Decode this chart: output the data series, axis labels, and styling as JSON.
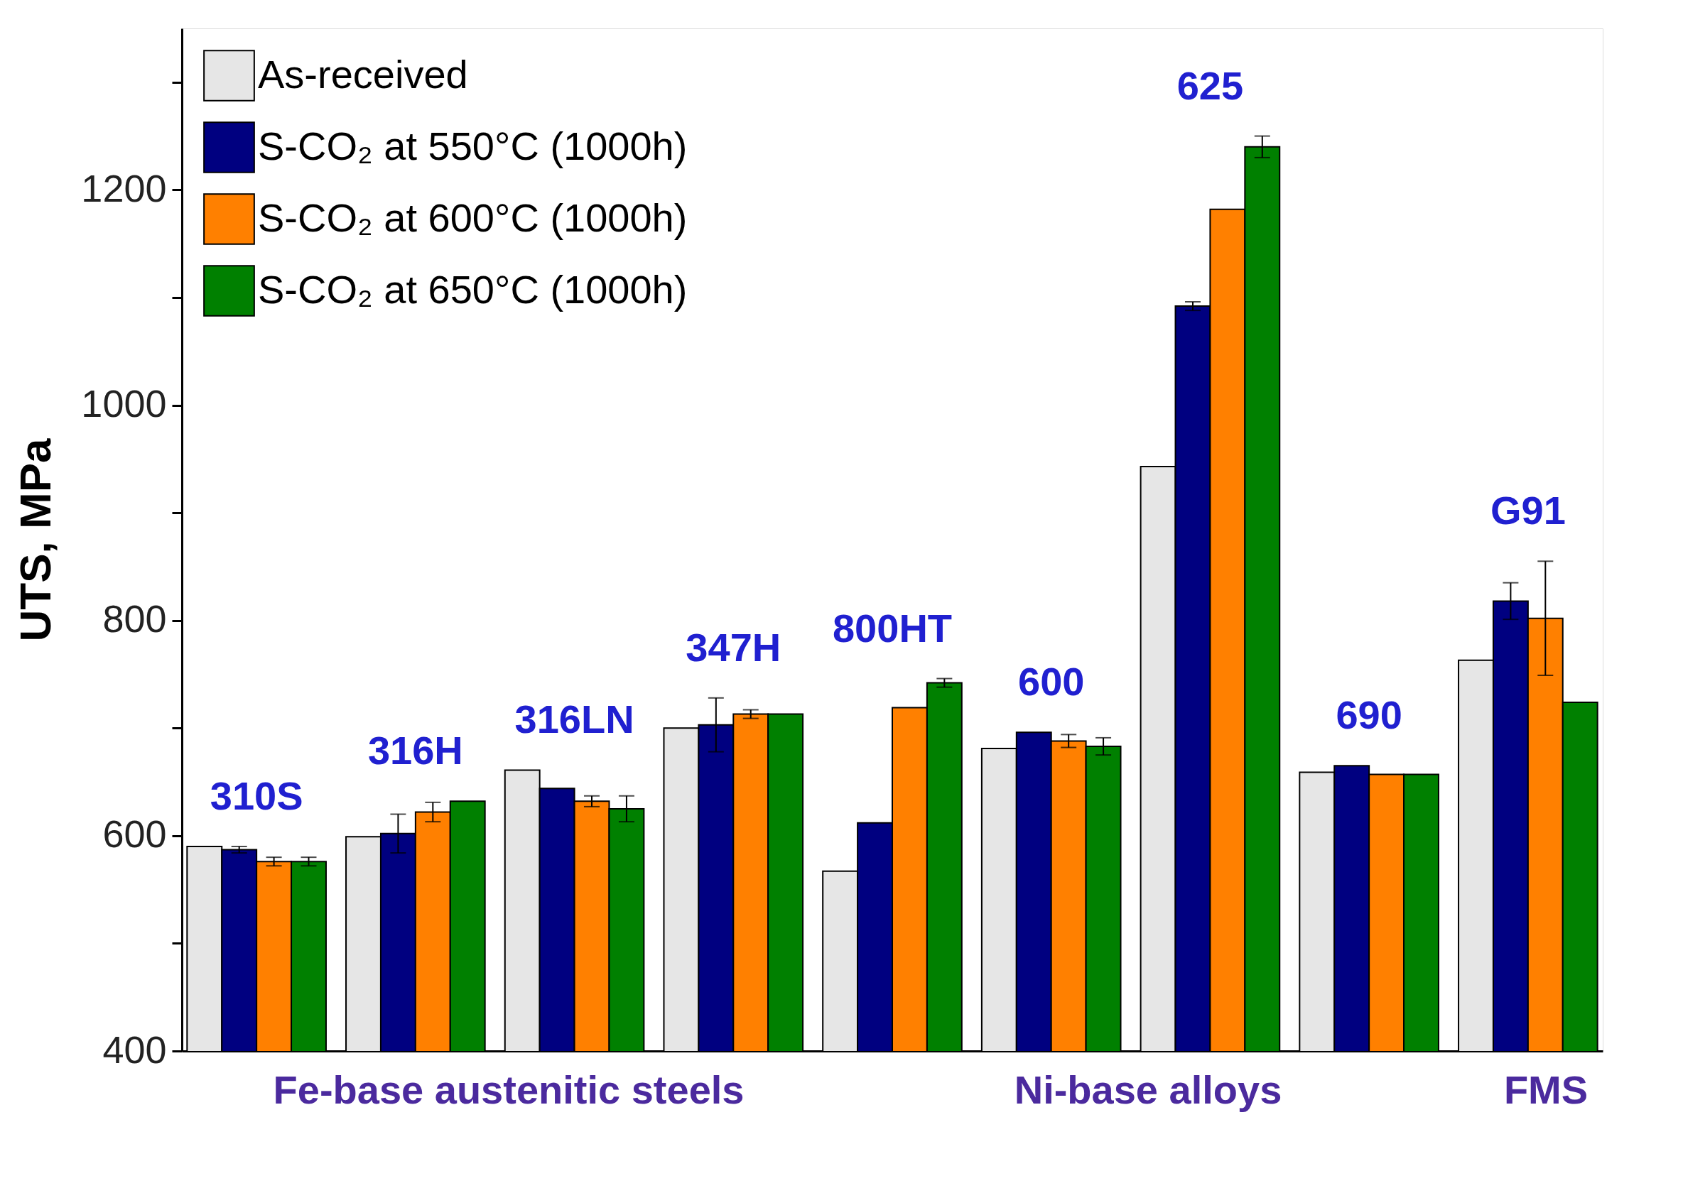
{
  "chart_data": {
    "type": "bar",
    "ylabel": "UTS, MPa",
    "categories": [
      "310S",
      "316H",
      "316LN",
      "347H",
      "800HT",
      "600",
      "625",
      "690",
      "G91"
    ],
    "series": [
      {
        "name": "As-received",
        "color": "#e6e6e6",
        "values": [
          590,
          599,
          661,
          700,
          567,
          681,
          943,
          659,
          763
        ]
      },
      {
        "name": "S-CO₂ at 550°C (1000h)",
        "color": "#000080",
        "values": [
          587,
          602,
          644,
          703,
          612,
          696,
          1092,
          665,
          818
        ],
        "errors": [
          3,
          18,
          null,
          25,
          null,
          null,
          4,
          null,
          17
        ]
      },
      {
        "name": "S-CO₂ at 600°C (1000h)",
        "color": "#ff8000",
        "values": [
          576,
          622,
          632,
          713,
          719,
          688,
          1182,
          657,
          802
        ],
        "errors": [
          4,
          9,
          5,
          4,
          null,
          6,
          null,
          null,
          53
        ]
      },
      {
        "name": "S-CO₂ at 650°C (1000h)",
        "color": "#008000",
        "values": [
          576,
          632,
          625,
          713,
          742,
          683,
          1240,
          657,
          724
        ],
        "errors": [
          4,
          null,
          12,
          null,
          4,
          8,
          10,
          null,
          null
        ]
      }
    ],
    "ylim": [
      400,
      1350
    ],
    "yticks": [
      400,
      {
        "value": 500,
        "label": null
      },
      600,
      {
        "value": 700,
        "label": null
      },
      800,
      {
        "value": 900,
        "label": null
      },
      1000,
      {
        "value": 1100,
        "label": null
      },
      1200,
      {
        "value": 1300,
        "label": null
      }
    ],
    "tick_labels": "y",
    "grid": false,
    "legend": "top left",
    "annotations": [
      "Fe-base austenitic steels",
      "Ni-base alloys",
      "FMS"
    ]
  }
}
